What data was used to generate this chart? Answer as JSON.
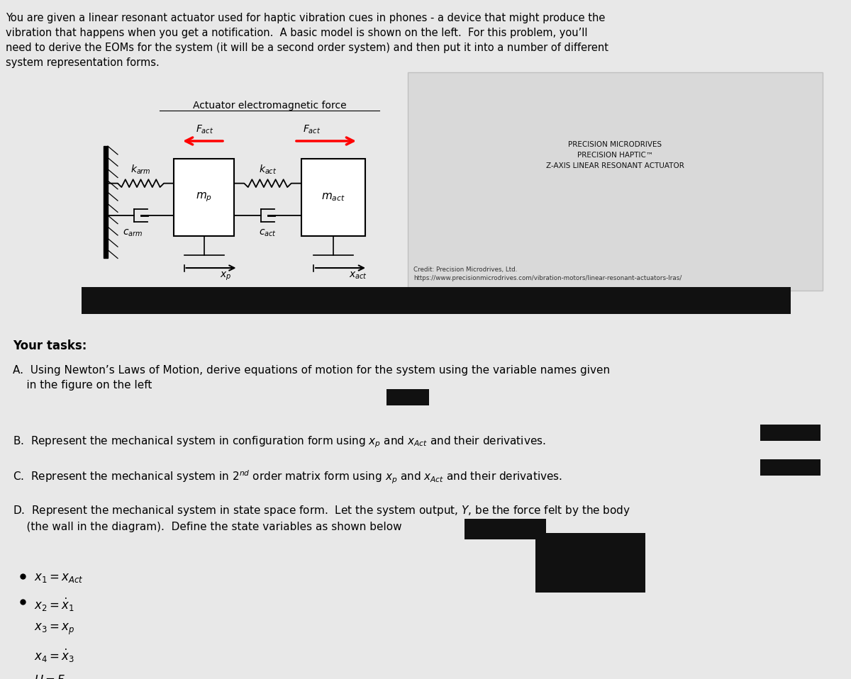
{
  "bg_color": "#e8e8e8",
  "intro_text": "You are given a linear resonant actuator used for haptic vibration cues in phones - a device that might produce the\nvibration that happens when you get a notification.  A basic model is shown on the left.  For this problem, you’ll\nneed to derive the EOMs for the system (it will be a second order system) and then put it into a number of different\nsystem representation forms.",
  "your_tasks": "Your tasks:",
  "task_A": "A.  Using Newton’s Laws of Motion, derive equations of motion for the system using the variable names given\n    in the figure on the left",
  "task_D": "D.  Represent the mechanical system in state space form.  Let the system output, $Y$, be the force felt by the body\n    (the wall in the diagram).  Define the state variables as shown below",
  "bullet1": "$x_1 = x_{Act}$",
  "bullet2": "$x_2 = \\dot{x}_1$",
  "bullet3": "$x_3 = x_p$",
  "bullet4": "$x_4 = \\dot{x}_3$",
  "bullet5": "$U = F_{Act}$",
  "diagram_title": "Actuator electromagnetic force",
  "F_act_label": "$F_{act}$",
  "karm_label": "$k_{arm}$",
  "carm_label": "$c_{arm}$",
  "kact_label": "$k_{act}$",
  "cact_label": "$c_{act}$",
  "mp_label": "$m_p$",
  "mact_label": "$m_{act}$",
  "xp_label": "$x_p$",
  "xact_label": "$x_{act}$",
  "credit_text": "Credit: Precision Microdrives, Ltd.\nhttps://www.precisionmicrodrives.com/vibration-motors/linear-resonant-actuators-lras/",
  "lra_text": "PRECISION MICRODRIVES\nPRECISION HAPTIC™\nZ-AXIS LINEAR RESONANT ACTUATOR"
}
